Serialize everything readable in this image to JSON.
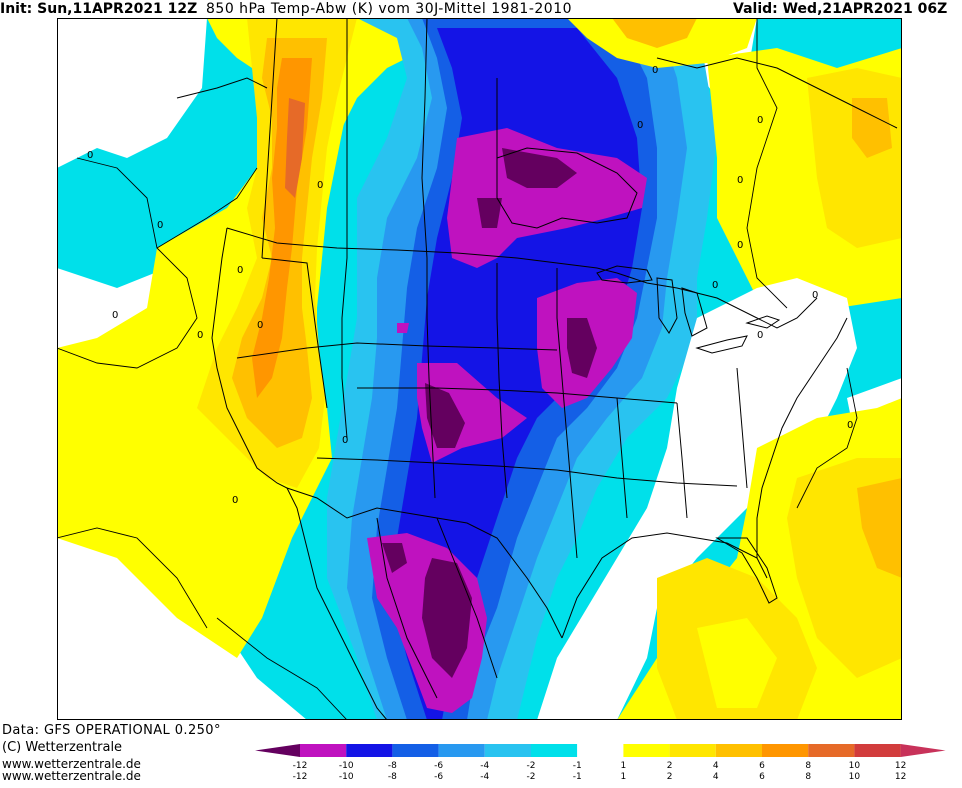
{
  "header": {
    "init": "Init: Sun,11APR2021 12Z",
    "title": "850 hPa Temp-Abw (K) vom 30J-Mittel 1981-2010",
    "valid": "Valid: Wed,21APR2021 06Z"
  },
  "footer": {
    "data_source": "Data: GFS OPERATIONAL 0.250°",
    "copyright": "(C) Wetterzentrale",
    "url1": "www.wetterzentrale.de",
    "url2": "www.wetterzentrale.de"
  },
  "map": {
    "region": "North America",
    "contour_labels": [
      "0",
      "0",
      "0",
      "0",
      "0",
      "0",
      "0",
      "0",
      "0",
      "0",
      "0",
      "0",
      "0",
      "0",
      "0",
      "0",
      "0",
      "0"
    ]
  },
  "legend": {
    "bins": [
      {
        "lower": "-12",
        "upper": "-10",
        "color": "#bf12bf"
      },
      {
        "lower": "-10",
        "upper": "-8",
        "color": "#1414e6"
      },
      {
        "lower": "-8",
        "upper": "-6",
        "color": "#145fe6"
      },
      {
        "lower": "-6",
        "upper": "-4",
        "color": "#2899f0"
      },
      {
        "lower": "-4",
        "upper": "-2",
        "color": "#29c3f0"
      },
      {
        "lower": "-2",
        "upper": "-1",
        "color": "#00e0ea"
      },
      {
        "lower": "-1",
        "upper": "1",
        "color": "#ffffff"
      },
      {
        "lower": "1",
        "upper": "2",
        "color": "#ffff00"
      },
      {
        "lower": "2",
        "upper": "4",
        "color": "#ffe600"
      },
      {
        "lower": "4",
        "upper": "6",
        "color": "#ffc000"
      },
      {
        "lower": "6",
        "upper": "8",
        "color": "#ff9600"
      },
      {
        "lower": "8",
        "upper": "10",
        "color": "#e66a28"
      },
      {
        "lower": "10",
        "upper": "12",
        "color": "#d23c3c"
      }
    ],
    "end_low_color": "#64005f",
    "end_high_color": "#c8325a",
    "tick_labels": [
      "-12",
      "-10",
      "-8",
      "-6",
      "-4",
      "-2",
      "-1",
      "1",
      "2",
      "4",
      "6",
      "8",
      "10",
      "12"
    ]
  },
  "colors": {
    "deep_purple": "#64005f",
    "magenta": "#bf12bf",
    "blue": "#1414e6",
    "med_blue": "#145fe6",
    "light_blue": "#2899f0",
    "sky": "#29c3f0",
    "cyan": "#00e0ea",
    "white": "#ffffff",
    "yellow": "#ffff00",
    "gold": "#ffe600",
    "amber": "#ffc000",
    "orange": "#ff9600",
    "dark_orange": "#e66a28",
    "red": "#d23c3c"
  }
}
